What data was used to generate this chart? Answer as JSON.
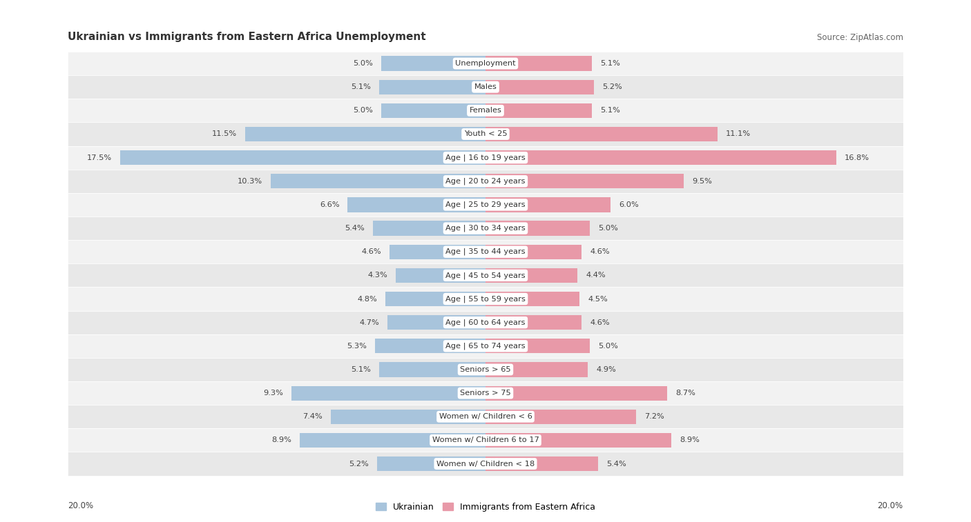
{
  "title": "Ukrainian vs Immigrants from Eastern Africa Unemployment",
  "source": "Source: ZipAtlas.com",
  "categories": [
    "Unemployment",
    "Males",
    "Females",
    "Youth < 25",
    "Age | 16 to 19 years",
    "Age | 20 to 24 years",
    "Age | 25 to 29 years",
    "Age | 30 to 34 years",
    "Age | 35 to 44 years",
    "Age | 45 to 54 years",
    "Age | 55 to 59 years",
    "Age | 60 to 64 years",
    "Age | 65 to 74 years",
    "Seniors > 65",
    "Seniors > 75",
    "Women w/ Children < 6",
    "Women w/ Children 6 to 17",
    "Women w/ Children < 18"
  ],
  "ukrainian": [
    5.0,
    5.1,
    5.0,
    11.5,
    17.5,
    10.3,
    6.6,
    5.4,
    4.6,
    4.3,
    4.8,
    4.7,
    5.3,
    5.1,
    9.3,
    7.4,
    8.9,
    5.2
  ],
  "eastern_africa": [
    5.1,
    5.2,
    5.1,
    11.1,
    16.8,
    9.5,
    6.0,
    5.0,
    4.6,
    4.4,
    4.5,
    4.6,
    5.0,
    4.9,
    8.7,
    7.2,
    8.9,
    5.4
  ],
  "ukrainian_color": "#a8c4dc",
  "eastern_africa_color": "#e899a8",
  "x_max": 20.0,
  "legend_ukrainian": "Ukrainian",
  "legend_eastern_africa": "Immigrants from Eastern Africa",
  "axis_label_left": "20.0%",
  "axis_label_right": "20.0%"
}
